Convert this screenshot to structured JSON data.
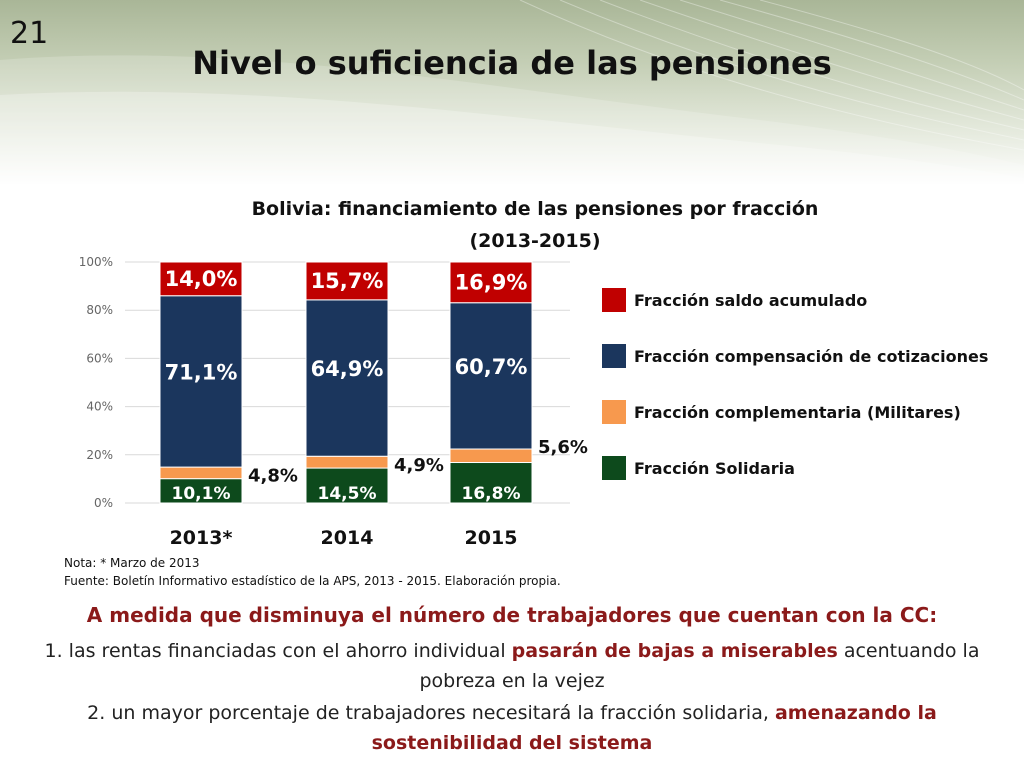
{
  "slide": {
    "number": "21",
    "title": "Nivel o suficiencia de las pensiones"
  },
  "chart_data": {
    "type": "bar",
    "stacked": true,
    "title": "Bolivia: financiamiento de las pensiones por fracción",
    "subtitle": "(2013-2015)",
    "categories": [
      "2013*",
      "2014",
      "2015"
    ],
    "ylim": [
      0,
      100
    ],
    "yticks": [
      "0%",
      "20%",
      "40%",
      "60%",
      "80%",
      "100%"
    ],
    "grid": true,
    "legend_position": "right",
    "series": [
      {
        "name": "Fracción Solidaria",
        "color": "#0d4a1c",
        "values": [
          10.1,
          14.5,
          16.8
        ],
        "labels": [
          "10,1%",
          "14,5%",
          "16,8%"
        ]
      },
      {
        "name": "Fracción complementaria (Militares)",
        "color": "#f7994e",
        "values": [
          4.8,
          4.9,
          5.6
        ],
        "labels": [
          "4,8%",
          "4,9%",
          "5,6%"
        ]
      },
      {
        "name": "Fracción compensación de cotizaciones",
        "color": "#1b365d",
        "values": [
          71.1,
          64.9,
          60.7
        ],
        "labels": [
          "71,1%",
          "64,9%",
          "60,7%"
        ]
      },
      {
        "name": "Fracción saldo acumulado",
        "color": "#c00000",
        "values": [
          14.0,
          15.7,
          16.9
        ],
        "labels": [
          "14,0%",
          "15,7%",
          "16,9%"
        ]
      }
    ]
  },
  "notes": {
    "line1": "Nota: * Marzo de 2013",
    "line2": "Fuente: Boletín Informativo estadístico de la APS, 2013 - 2015. Elaboración propia."
  },
  "conclusion": {
    "heading": "A medida que disminuya el número de trabajadores que cuentan con la CC:",
    "point1_pre": "1. las rentas financiadas con el ahorro individual ",
    "point1_em": "pasarán de bajas a miserables",
    "point1_post": " acentuando la pobreza en la vejez",
    "point2_pre": "2. un mayor porcentaje de trabajadores necesitará la fracción solidaria, ",
    "point2_em": "amenazando la sostenibilidad del sistema"
  }
}
